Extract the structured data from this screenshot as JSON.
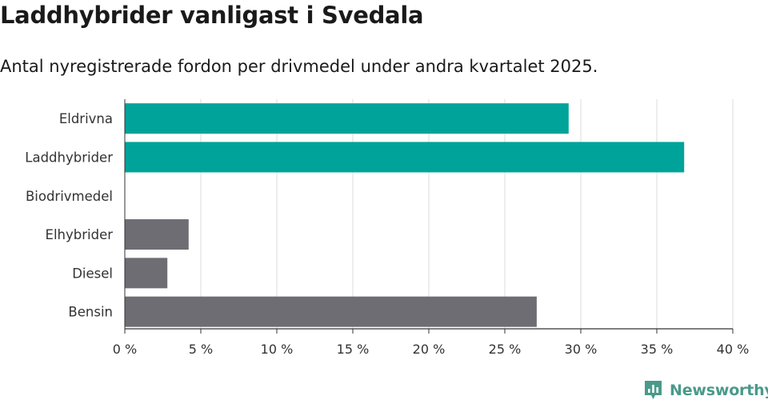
{
  "header": {
    "title": "Laddhybrider vanligast i Svedala",
    "subtitle": "Antal nyregistrerade fordon per drivmedel under andra kvartalet 2025."
  },
  "chart_data": {
    "type": "bar",
    "orientation": "horizontal",
    "title": "Laddhybrider vanligast i Svedala",
    "subtitle": "Antal nyregistrerade fordon per drivmedel under andra kvartalet 2025.",
    "categories": [
      "Eldrivna",
      "Laddhybrider",
      "Biodrivmedel",
      "Elhybrider",
      "Diesel",
      "Bensin"
    ],
    "values": [
      29.2,
      36.8,
      0,
      4.2,
      2.8,
      27.1
    ],
    "colors": [
      "#00a39a",
      "#00a39a",
      "#00a39a",
      "#6e6d73",
      "#6e6d73",
      "#6e6d73"
    ],
    "xlim": [
      0,
      40
    ],
    "xticks": [
      0,
      5,
      10,
      15,
      20,
      25,
      30,
      35,
      40
    ],
    "xtick_labels": [
      "0 %",
      "5 %",
      "10 %",
      "15 %",
      "20 %",
      "25 %",
      "30 %",
      "35 %",
      "40 %"
    ],
    "unit": "%",
    "grid": "vertical"
  },
  "branding": {
    "name": "Newsworthy",
    "icon": "newsworthy-logo-icon",
    "color": "#4a9a8a"
  }
}
